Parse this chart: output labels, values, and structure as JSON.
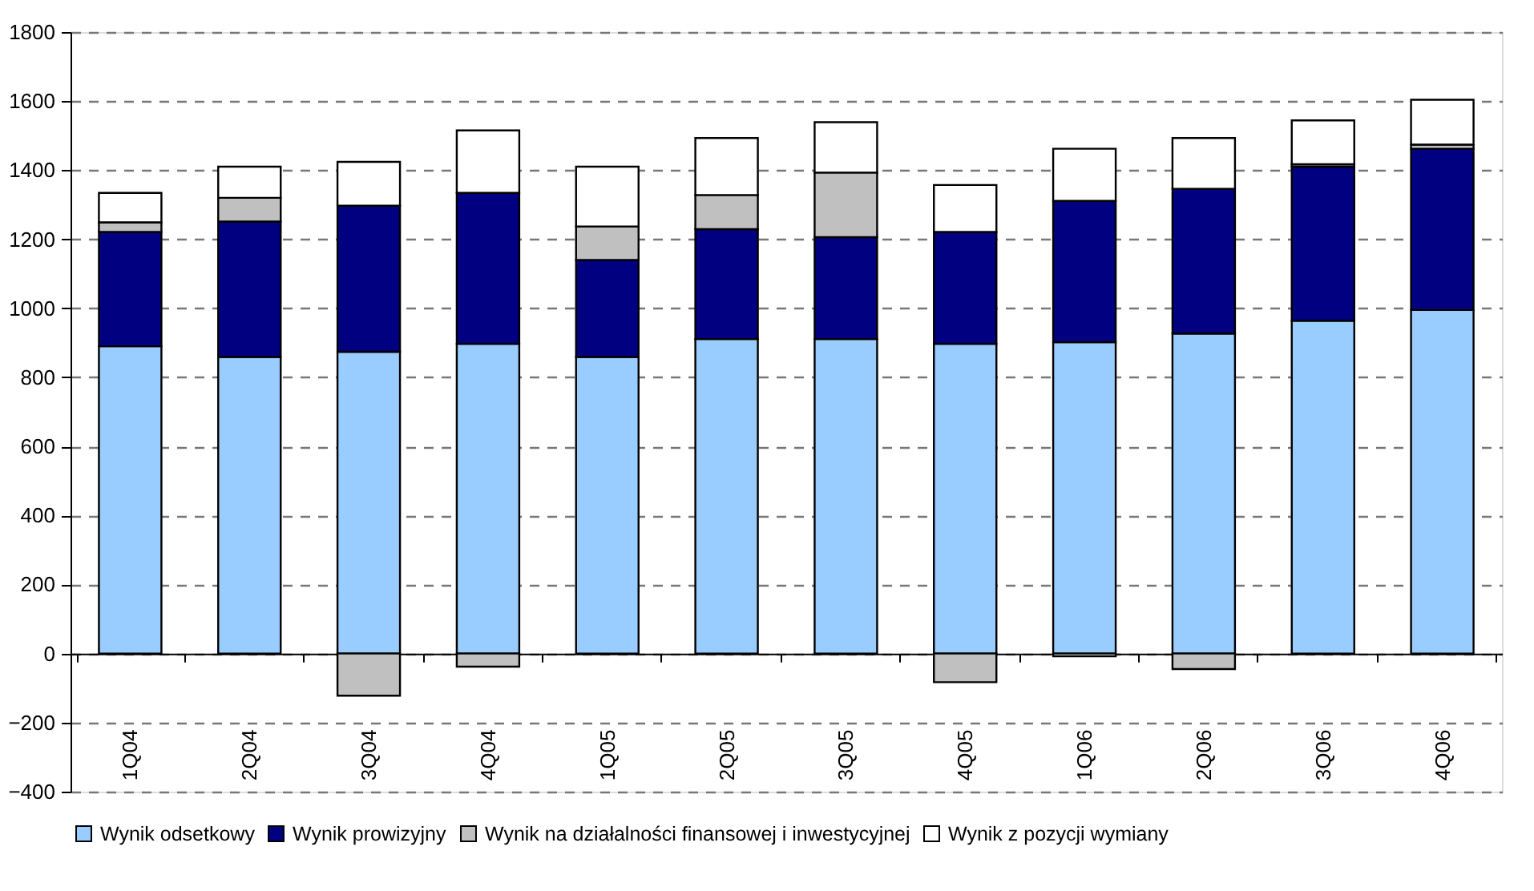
{
  "chart_data": {
    "type": "bar",
    "stacked": true,
    "categories": [
      "1Q04",
      "2Q04",
      "3Q04",
      "4Q04",
      "1Q05",
      "2Q05",
      "3Q05",
      "4Q05",
      "1Q06",
      "2Q06",
      "3Q06",
      "4Q06"
    ],
    "series": [
      {
        "name": "Wynik odsetkowy",
        "color": "#99ccff",
        "values": [
          890,
          859,
          874,
          897,
          859,
          911,
          911,
          897,
          902,
          927,
          964,
          995
        ]
      },
      {
        "name": "Wynik prowizyjny",
        "color": "#000080",
        "values": [
          331,
          392,
          423,
          437,
          281,
          318,
          295,
          324,
          409,
          419,
          446,
          467
        ]
      },
      {
        "name": "Wynik na działalności finansowej i inwestycyjnej",
        "color": "#c0c0c0",
        "values": [
          28,
          69,
          -122,
          -38,
          97,
          99,
          187,
          -83,
          -8,
          -45,
          7,
          12
        ]
      },
      {
        "name": "Wynik z pozycji wymiany",
        "color": "#ffffff",
        "values": [
          85,
          90,
          127,
          181,
          173,
          165,
          146,
          136,
          151,
          147,
          127,
          130
        ]
      }
    ],
    "ylim": [
      -400,
      1800
    ],
    "yticks": [
      -400,
      -200,
      0,
      200,
      400,
      600,
      800,
      1000,
      1200,
      1400,
      1600,
      1800
    ],
    "grid": "y",
    "legend": "bottom"
  }
}
